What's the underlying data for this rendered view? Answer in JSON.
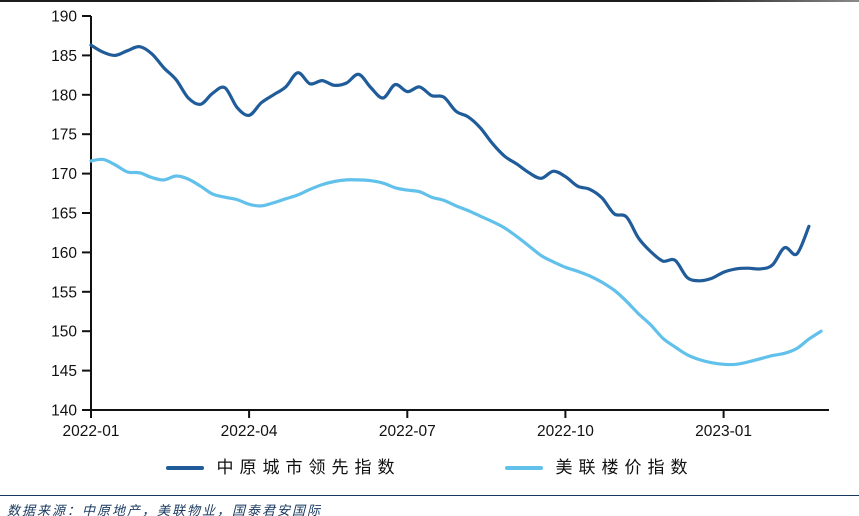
{
  "chart_data": {
    "type": "line",
    "title": "",
    "xlabel": "",
    "ylabel": "",
    "grid": false,
    "legend_position": "bottom",
    "ylim": [
      140,
      190
    ],
    "y_tick_step": 5,
    "y_tick_labels": [
      "140",
      "145",
      "150",
      "155",
      "160",
      "165",
      "170",
      "175",
      "180",
      "185",
      "190"
    ],
    "x_tick_labels": [
      "2022-01",
      "2022-04",
      "2022-07",
      "2022-10",
      "2023-01"
    ],
    "x_tick_months": [
      0,
      3,
      6,
      9,
      12
    ],
    "x_axis_span_months": 14,
    "x_frequency": "weekly",
    "series": [
      {
        "name": "中原城市领先指数",
        "color": "#1F5C99",
        "values": [
          186.3,
          185.4,
          185.0,
          185.6,
          186.1,
          185.2,
          183.4,
          181.9,
          179.6,
          178.8,
          180.2,
          180.9,
          178.4,
          177.4,
          179.0,
          180.0,
          181.0,
          182.8,
          181.4,
          181.8,
          181.2,
          181.5,
          182.6,
          180.9,
          179.6,
          181.3,
          180.4,
          181.0,
          179.9,
          179.7,
          177.9,
          177.2,
          175.8,
          173.8,
          172.2,
          171.2,
          170.1,
          169.4,
          170.3,
          169.6,
          168.4,
          168.0,
          166.9,
          164.9,
          164.5,
          161.8,
          160.1,
          158.9,
          159.0,
          156.8,
          156.4,
          156.7,
          157.5,
          157.9,
          158.0,
          157.9,
          158.4,
          160.6,
          159.8,
          163.3
        ]
      },
      {
        "name": "美联楼价指数",
        "color": "#62C1EA",
        "values": [
          171.6,
          171.8,
          171.1,
          170.2,
          170.1,
          169.5,
          169.2,
          169.7,
          169.3,
          168.4,
          167.4,
          167.0,
          166.7,
          166.1,
          165.9,
          166.3,
          166.8,
          167.3,
          168.0,
          168.6,
          169.0,
          169.2,
          169.2,
          169.1,
          168.8,
          168.2,
          167.9,
          167.7,
          167.0,
          166.6,
          165.9,
          165.3,
          164.6,
          163.9,
          163.1,
          162.0,
          160.8,
          159.6,
          158.8,
          158.1,
          157.6,
          157.0,
          156.2,
          155.2,
          153.8,
          152.2,
          150.8,
          149.1,
          148.0,
          147.0,
          146.4,
          146.0,
          145.8,
          145.8,
          146.1,
          146.5,
          146.9,
          147.2,
          147.8,
          149.0,
          150.0
        ]
      }
    ]
  },
  "legend": {
    "items": [
      {
        "label": "中原城市领先指数"
      },
      {
        "label": "美联楼价指数"
      }
    ]
  },
  "source_note": "数据来源：中原地产，美联物业，国泰君安国际",
  "colors": {
    "axis": "#111111",
    "series_dark": "#1F5C99",
    "series_light": "#62C1EA",
    "source_text": "#17375E",
    "divider": "#17375E"
  }
}
